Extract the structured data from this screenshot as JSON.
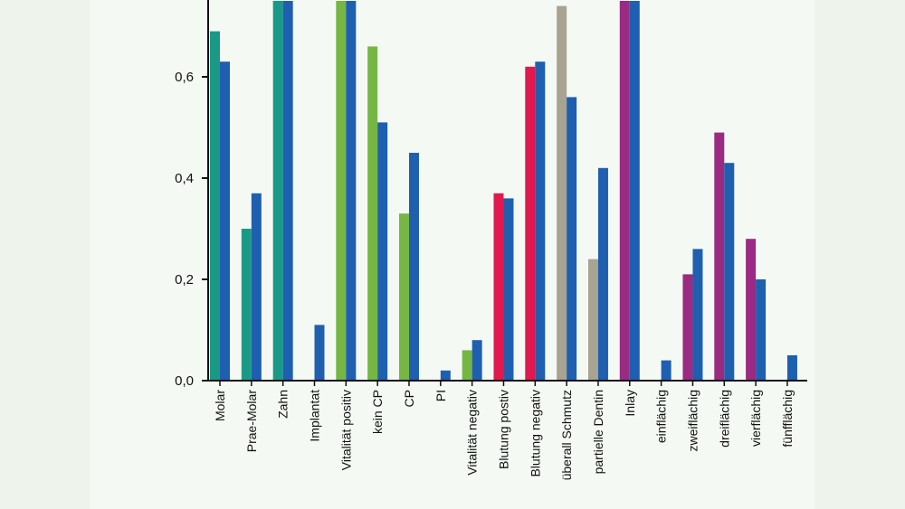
{
  "chart_data": {
    "type": "bar",
    "title": "",
    "xlabel": "",
    "ylabel": "",
    "ylim": [
      0,
      0.75
    ],
    "yticks": [
      "0,0",
      "0,2",
      "0,4",
      "0,6"
    ],
    "ytick_values": [
      0,
      0.2,
      0.4,
      0.6
    ],
    "categories": [
      "Molar",
      "Prae-Molar",
      "Zahn",
      "Implantat",
      "Vitalität positiv",
      "kein CP",
      "CP",
      "PI",
      "Vitalität negativ",
      "Blutung postiv",
      "Blutung negativ",
      "überall Schmutz",
      "partielle Dentin",
      "Inlay",
      "einflächig",
      "zweiflächig",
      "dreiflächig",
      "vierflächig",
      "fünfflächig"
    ],
    "series": [
      {
        "color": "#1a9a86",
        "values": [
          0.69,
          0.3,
          0.75,
          null,
          0.75,
          0.66,
          0.33,
          null,
          0.06,
          0.37,
          0.62,
          0.74,
          0.24,
          0.75,
          null,
          0.21,
          0.49,
          0.28,
          null
        ],
        "colors": [
          "#1a9a86",
          "#1a9a86",
          "#1a9a86",
          null,
          "#76b643",
          "#76b643",
          "#76b643",
          null,
          "#76b643",
          "#e0194f",
          "#e0194f",
          "#a9a391",
          "#a9a391",
          "#9a2a82",
          null,
          "#9a2a82",
          "#9a2a82",
          "#9a2a82",
          null
        ]
      },
      {
        "color": "#1f5fb0",
        "values": [
          0.63,
          0.37,
          0.75,
          0.11,
          0.75,
          0.51,
          0.45,
          0.02,
          0.08,
          0.36,
          0.63,
          0.56,
          0.42,
          0.75,
          0.04,
          0.26,
          0.43,
          0.2,
          0.05
        ]
      }
    ],
    "grid": false,
    "legend": "none"
  }
}
